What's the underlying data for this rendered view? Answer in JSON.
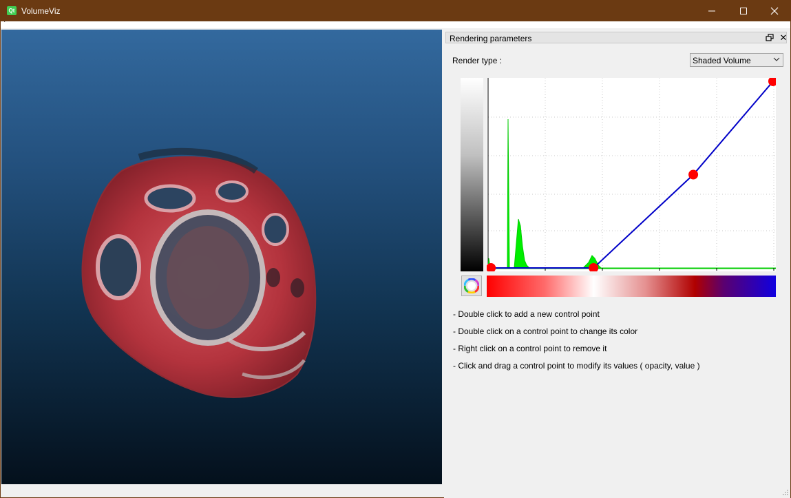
{
  "window": {
    "title": "VolumeViz",
    "icon_text": "Qt",
    "menu_item": "·"
  },
  "dock": {
    "title": "Rendering parameters",
    "render_type_label": "Render type :",
    "render_type_value": "Shaded Volume",
    "help_lines": [
      "- Double click to add a new control point",
      "- Double click on a control point to change its color",
      "- Right click on a control point to remove it",
      "- Click and drag a control point to modify its values ( opacity, value )"
    ]
  },
  "transfer_function": {
    "control_points": [
      {
        "value": 0.01,
        "opacity": 0.0
      },
      {
        "value": 0.37,
        "opacity": 0.0
      },
      {
        "value": 0.72,
        "opacity": 0.5
      },
      {
        "value": 1.0,
        "opacity": 1.0
      }
    ],
    "line_color": "#0000c8",
    "point_color": "#ff0000",
    "histogram_color": "#00ee00"
  },
  "colors": {
    "titlebar": "#6b3a12",
    "gradient_stops": [
      "#ff0000",
      "#ff6a6a",
      "#ffffff",
      "#e59090",
      "#b00000",
      "#5a0070",
      "#1000e0"
    ]
  },
  "icons": {
    "app": "qt-logo-icon",
    "minimize": "minimize-icon",
    "maximize": "maximize-icon",
    "close": "close-icon",
    "dock_float": "float-icon",
    "dock_close": "close-icon",
    "color_picker": "color-wheel-icon",
    "select": "chevron-down-icon"
  }
}
